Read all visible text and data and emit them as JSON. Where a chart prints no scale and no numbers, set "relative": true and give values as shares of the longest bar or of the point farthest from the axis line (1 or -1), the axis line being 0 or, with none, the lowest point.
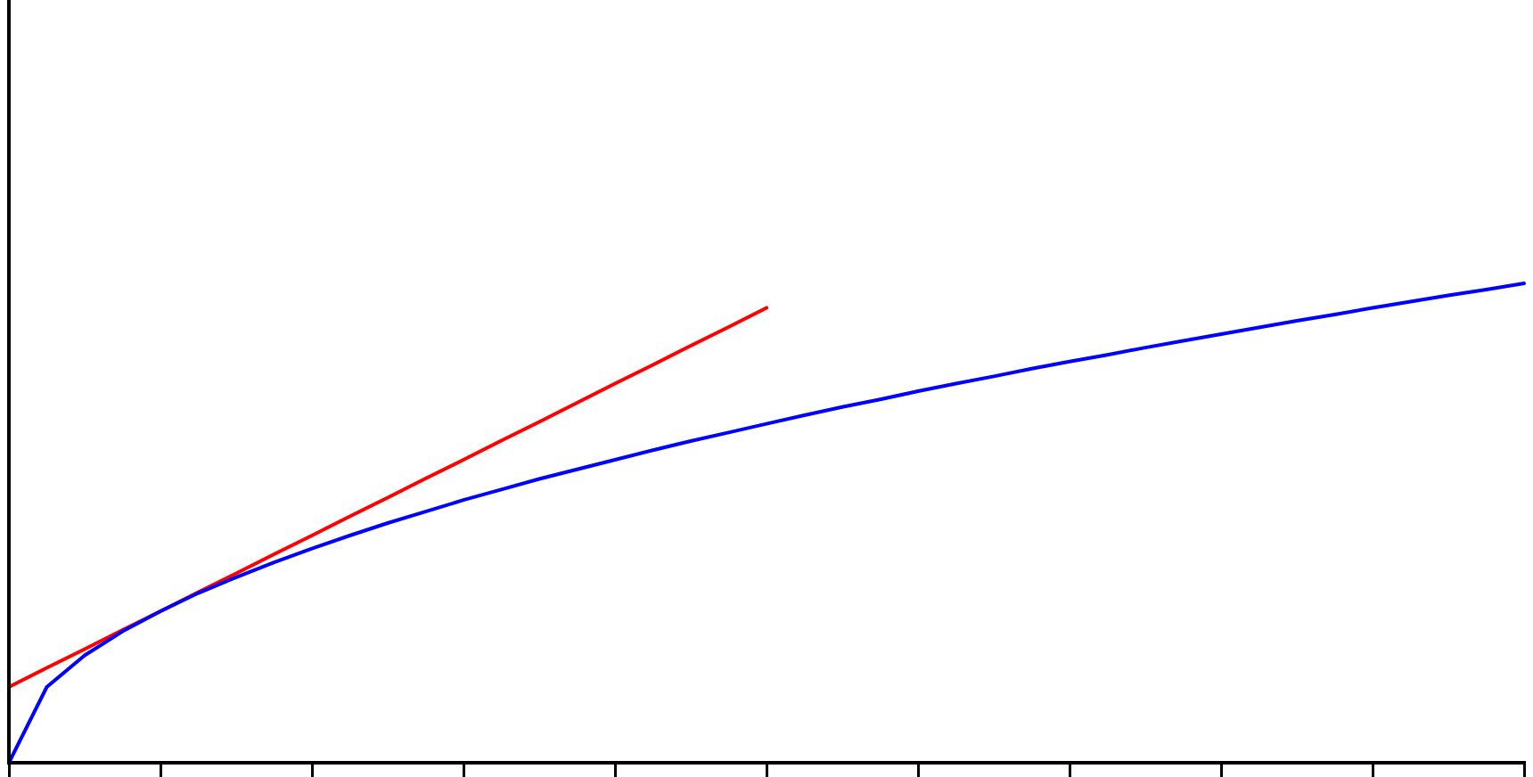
{
  "chart_data": {
    "type": "line",
    "relative": true,
    "grid": false,
    "legend": false,
    "marker": "none",
    "line_style": "solid",
    "categories": [
      null,
      null,
      null,
      null,
      null,
      null,
      null,
      null,
      null,
      null,
      null,
      null,
      null,
      null,
      null,
      null,
      null,
      null,
      null,
      null,
      null,
      null,
      null,
      null,
      null,
      null,
      null,
      null,
      null,
      null,
      null,
      null,
      null,
      null,
      null,
      null,
      null,
      null,
      null,
      null,
      null
    ],
    "series": [
      {
        "color": "#0000ff",
        "values": [
          0,
          0.158,
          0.224,
          0.274,
          0.316,
          0.354,
          0.387,
          0.418,
          0.447,
          0.474,
          0.5,
          0.524,
          0.548,
          0.57,
          0.592,
          0.612,
          0.632,
          0.652,
          0.671,
          0.689,
          0.707,
          0.725,
          0.742,
          0.758,
          0.775,
          0.791,
          0.806,
          0.822,
          0.837,
          0.851,
          0.866,
          0.88,
          0.894,
          0.908,
          0.922,
          0.935,
          0.949,
          0.962,
          0.975,
          0.987,
          1
        ]
      },
      {
        "color": "#ff0000",
        "values": [
          0.158,
          0.198,
          0.237,
          0.277,
          0.316,
          0.356,
          0.395,
          0.435,
          0.474,
          0.514,
          0.553,
          0.593,
          0.632,
          0.672,
          0.711,
          0.751,
          0.791,
          0.83,
          0.87,
          0.909,
          0.949,
          null,
          null,
          null,
          null,
          null,
          null,
          null,
          null,
          null,
          null,
          null,
          null,
          null,
          null,
          null,
          null,
          null,
          null,
          null,
          null
        ]
      }
    ]
  }
}
